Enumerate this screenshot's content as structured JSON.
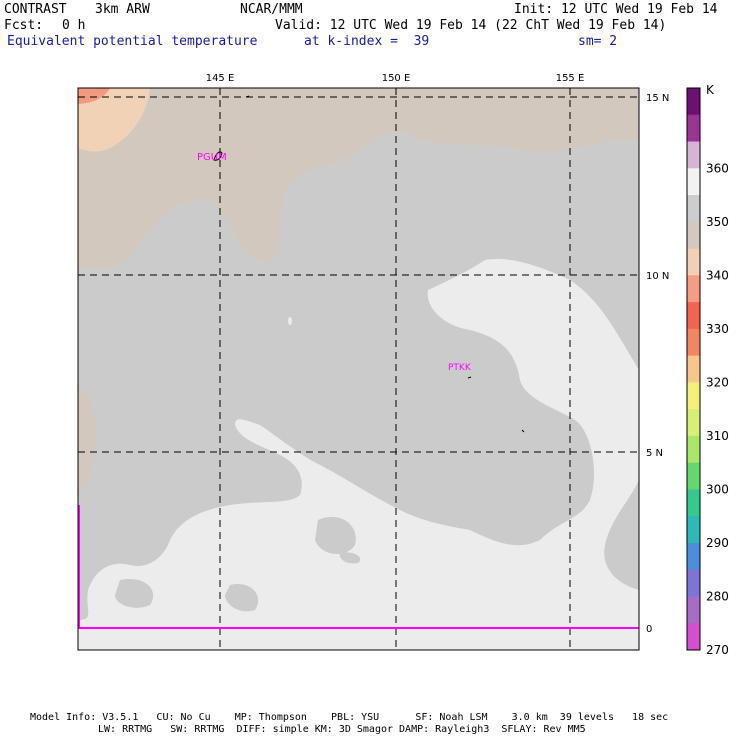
{
  "header": {
    "model": "CONTRAST",
    "resolution": "3km ARW",
    "org": "NCAR/MMM",
    "init": "Init: 12 UTC Wed 19 Feb 14",
    "fcst_label": "Fcst:",
    "fcst_value": "0 h",
    "valid": "Valid: 12 UTC Wed 19 Feb 14 (22 ChT Wed 19 Feb 14)",
    "field": "Equivalent potential temperature",
    "level": "at k-index =  39",
    "smoothing": "sm= 2"
  },
  "map": {
    "lon_labels": [
      "145 E",
      "150 E",
      "155 E"
    ],
    "lat_labels": [
      "15 N",
      "10 N",
      "5 N",
      "0"
    ],
    "stations": [
      "PGUM",
      "PTKK"
    ],
    "colors": {
      "gray": "#cbcbcb",
      "tan": "#d2c8bd",
      "white": "#ececec",
      "peach": "#f2d2b6",
      "salmon": "#f29a80",
      "station": "#ff00ff",
      "grid": "#000000"
    }
  },
  "colorbar": {
    "unit": "K",
    "labels": [
      "360",
      "350",
      "340",
      "330",
      "320",
      "310",
      "300",
      "290",
      "280",
      "270"
    ],
    "colors": [
      "#6e0f73",
      "#9a3596",
      "#d9b3d6",
      "#f2f2f2",
      "#cdcdcd",
      "#d5c8bd",
      "#f4cfb5",
      "#f59c81",
      "#f26450",
      "#f2865e",
      "#f6c788",
      "#f4f07a",
      "#d6ef74",
      "#a9e866",
      "#63d96d",
      "#33c98f",
      "#2db9b8",
      "#4b8fd9",
      "#7d74d6",
      "#a96bc8",
      "#d14fd0"
    ]
  },
  "footer": {
    "line1": "Model Info: V3.5.1   CU: No Cu    MP: Thompson    PBL: YSU      SF: Noah LSM    3.0 km  39 levels   18 sec",
    "line2": "LW: RRTMG   SW: RRTMG  DIFF: simple KM: 3D Smagor DAMP: Rayleigh3  SFLAY: Rev MM5"
  }
}
